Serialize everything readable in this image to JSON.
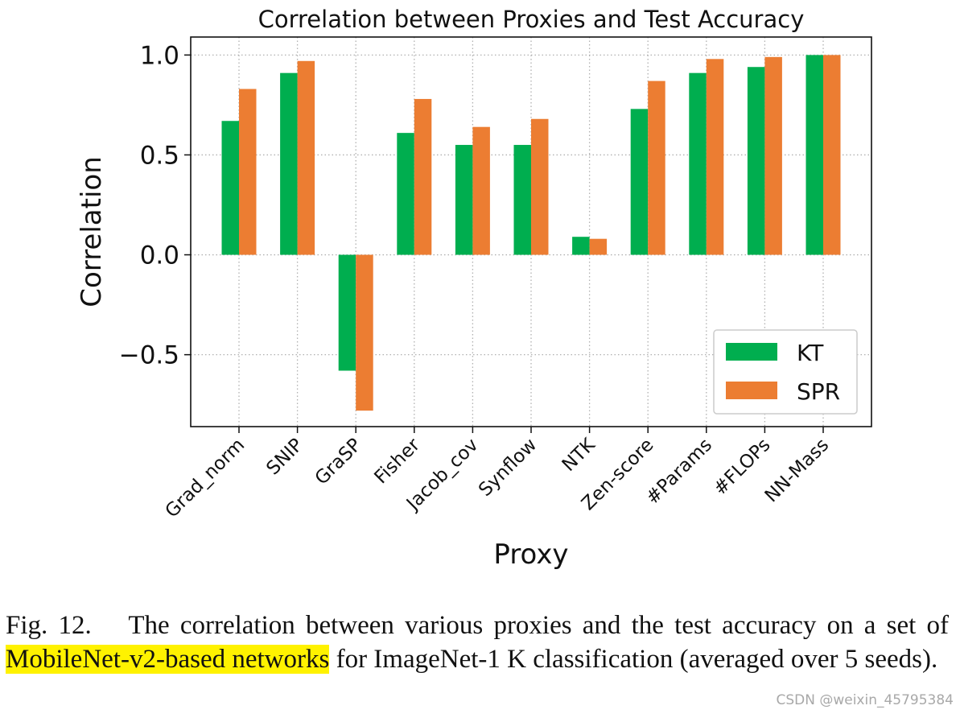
{
  "chart_data": {
    "type": "bar",
    "title": "Correlation between Proxies and Test Accuracy",
    "xlabel": "Proxy",
    "ylabel": "Correlation",
    "categories": [
      "Grad_norm",
      "SNIP",
      "GraSP",
      "Fisher",
      "Jacob_cov",
      "Synflow",
      "NTK",
      "Zen-score",
      "#Params",
      "#FLOPs",
      "NN-Mass"
    ],
    "series": [
      {
        "name": "KT",
        "color": "#00ae4f",
        "values": [
          0.67,
          0.91,
          -0.58,
          0.61,
          0.55,
          0.55,
          0.09,
          0.73,
          0.91,
          0.94,
          1.0
        ]
      },
      {
        "name": "SPR",
        "color": "#ec7d32",
        "values": [
          0.83,
          0.97,
          -0.78,
          0.78,
          0.64,
          0.68,
          0.08,
          0.87,
          0.98,
          0.99,
          1.0
        ]
      }
    ],
    "ylim": [
      -0.86,
      1.09
    ],
    "yticks": [
      -0.5,
      0.0,
      0.5,
      1.0
    ],
    "ytick_labels": [
      "−0.5",
      "0.0",
      "0.5",
      "1.0"
    ],
    "grid": true,
    "legend": "lower-right"
  },
  "caption": {
    "prefix": "Fig. 12.  The correlation between various proxies and the test accuracy on a set of ",
    "highlight": "MobileNet-v2-based networks",
    "suffix": " for ImageNet-1 K classification (averaged over 5 seeds)."
  },
  "watermark": "CSDN @weixin_45795384"
}
